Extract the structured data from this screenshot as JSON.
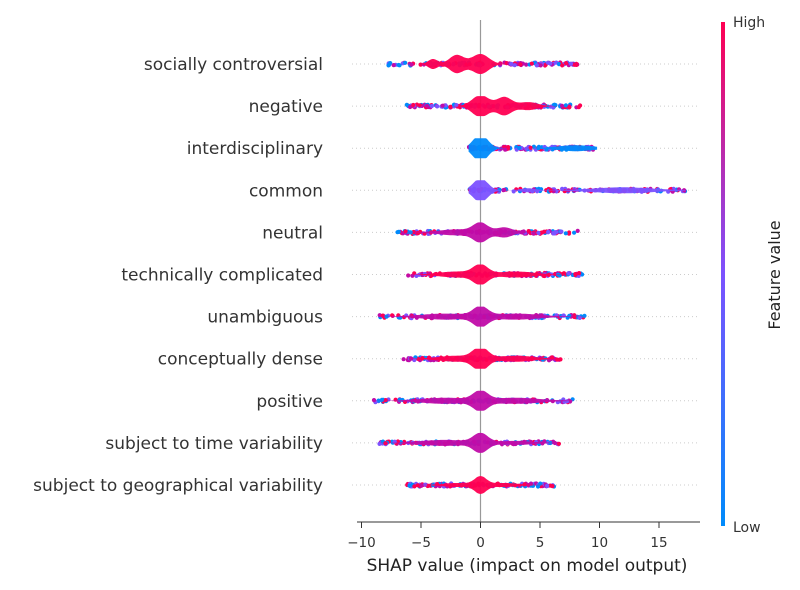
{
  "chart_data": {
    "type": "scatter",
    "subtype": "shap-violin-summary",
    "title": "",
    "xlabel": "SHAP value (impact on model output)",
    "ylabel": "",
    "xlim": [
      -10.5,
      18.5
    ],
    "xticks": [
      -10,
      -5,
      0,
      5,
      10,
      15
    ],
    "grid": false,
    "colorbar": {
      "label": "Feature value",
      "high_label": "High",
      "low_label": "Low",
      "low_color": "#008bfb",
      "mid_color": "#7c52ff",
      "high_color": "#ff0052"
    },
    "features": [
      {
        "name": "socially controversial",
        "range": [
          -7.8,
          8.2
        ],
        "violin_color": "#ff0052",
        "peaks": [
          [
            -2,
            0.6,
            9
          ],
          [
            0,
            0.7,
            10
          ],
          [
            -4,
            0.4,
            5
          ]
        ]
      },
      {
        "name": "negative",
        "range": [
          -6.2,
          8.4
        ],
        "violin_color": "#ff0052",
        "peaks": [
          [
            0,
            0.7,
            11
          ],
          [
            2,
            0.6,
            9
          ],
          [
            4,
            0.8,
            4
          ]
        ]
      },
      {
        "name": "interdisciplinary",
        "range": [
          -1,
          9.8
        ],
        "violin_color": "#008bfb",
        "peaks": [
          [
            0,
            0.6,
            14
          ],
          [
            8,
            1.5,
            3
          ]
        ]
      },
      {
        "name": "common",
        "range": [
          -1,
          17.2
        ],
        "violin_color": "#7c52ff",
        "peaks": [
          [
            0,
            0.6,
            12
          ],
          [
            12,
            2.5,
            3
          ],
          [
            4,
            0.6,
            2
          ]
        ]
      },
      {
        "name": "neutral",
        "range": [
          -7,
          8.2
        ],
        "violin_color": "#c00ca8",
        "peaks": [
          [
            0,
            0.6,
            9
          ],
          [
            2,
            0.7,
            5
          ],
          [
            -2,
            1.5,
            3
          ]
        ]
      },
      {
        "name": "technically complicated",
        "range": [
          -6.2,
          8.6
        ],
        "violin_color": "#ff0052",
        "peaks": [
          [
            0,
            0.6,
            9
          ],
          [
            -2,
            1.5,
            3
          ],
          [
            3,
            1.5,
            3
          ]
        ]
      },
      {
        "name": "unambiguous",
        "range": [
          -8.5,
          8.8
        ],
        "violin_color": "#c00ca8",
        "peaks": [
          [
            0,
            0.6,
            9
          ],
          [
            -3,
            2,
            3
          ],
          [
            3,
            2,
            3
          ]
        ]
      },
      {
        "name": "conceptually dense",
        "range": [
          -6.5,
          6.8
        ],
        "violin_color": "#ff0052",
        "peaks": [
          [
            0,
            0.6,
            11
          ],
          [
            -2,
            1.5,
            3
          ],
          [
            3,
            1.5,
            3
          ]
        ]
      },
      {
        "name": "positive",
        "range": [
          -9,
          7.8
        ],
        "violin_color": "#c00ca8",
        "peaks": [
          [
            0,
            0.6,
            9
          ],
          [
            -3,
            2,
            3
          ],
          [
            3,
            2,
            3
          ]
        ]
      },
      {
        "name": "subject to time variability",
        "range": [
          -8.5,
          6.6
        ],
        "violin_color": "#c00ca8",
        "peaks": [
          [
            0,
            0.6,
            9
          ],
          [
            -3,
            2,
            3
          ],
          [
            3,
            1.5,
            2
          ]
        ]
      },
      {
        "name": "subject to geographical variability",
        "range": [
          -6.2,
          6.2
        ],
        "violin_color": "#ff0052",
        "peaks": [
          [
            0,
            0.5,
            8
          ],
          [
            -2,
            1.2,
            2
          ],
          [
            2,
            1.2,
            2
          ]
        ]
      }
    ]
  }
}
